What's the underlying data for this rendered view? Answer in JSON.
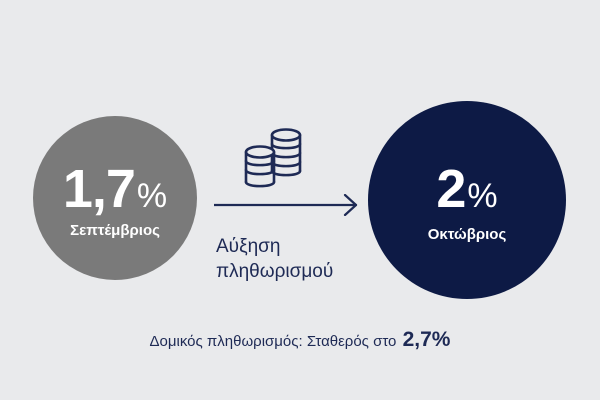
{
  "colors": {
    "background": "#e9eaec",
    "september_circle": "#7a7a7a",
    "october_circle": "#0d1a45",
    "accent_text": "#1e2a55"
  },
  "september": {
    "value": "1,7",
    "unit": "%",
    "label": "Σεπτέμβριος"
  },
  "october": {
    "value": "2",
    "unit": "%",
    "label": "Οκτώβριος"
  },
  "transition": {
    "icon": "coins-stack-icon",
    "line1": "Αύξηση",
    "line2": "πληθωρισμού"
  },
  "footer": {
    "text": "Δομικός πληθωρισμός: Σταθερός στο",
    "value": "2,7%"
  }
}
